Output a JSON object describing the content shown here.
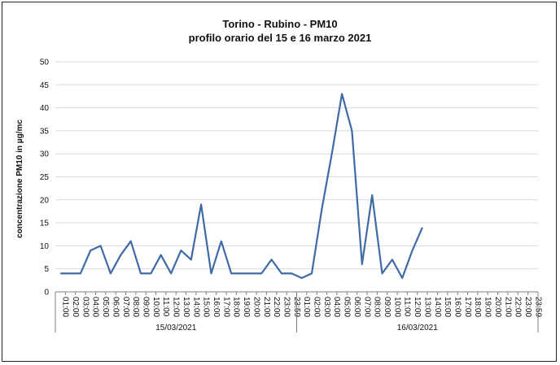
{
  "chart_data": {
    "type": "line",
    "title": "Torino - Rubino -  PM10",
    "subtitle": "profilo orario del 15 e 16 marzo 2021",
    "ylabel": "concentrazione PM10  in µg/mc",
    "ylim": [
      0,
      50
    ],
    "yticks": [
      0,
      5,
      10,
      15,
      20,
      25,
      30,
      35,
      40,
      45,
      50
    ],
    "grid": true,
    "x": [
      "01:00",
      "02:00",
      "03:00",
      "04:00",
      "05:00",
      "06:00",
      "07:00",
      "08:00",
      "09:00",
      "10:00",
      "11:00",
      "12:00",
      "13:00",
      "14:00",
      "15:00",
      "16:00",
      "17:00",
      "18:00",
      "19:00",
      "20:00",
      "21:00",
      "22:00",
      "23:00",
      "23:59",
      "01:00",
      "02:00",
      "03:00",
      "04:00",
      "05:00",
      "06:00",
      "07:00",
      "08:00",
      "09:00",
      "10:00",
      "11:00",
      "12:00",
      "13:00",
      "14:00",
      "15:00",
      "16:00",
      "17:00",
      "18:00",
      "19:00",
      "20:00",
      "21:00",
      "22:00",
      "23:00",
      "23:59"
    ],
    "groups": [
      {
        "label": "15/03/2021"
      },
      {
        "label": "16/03/2021"
      }
    ],
    "series": [
      {
        "color": "#3e6aa6",
        "values": [
          4,
          4,
          4,
          9,
          10,
          4,
          8,
          11,
          4,
          4,
          8,
          4,
          9,
          7,
          19,
          4,
          11,
          4,
          4,
          4,
          4,
          7,
          4,
          4,
          3,
          4,
          18,
          30,
          43,
          35,
          6,
          21,
          4,
          7,
          3,
          9,
          14,
          null,
          null,
          null,
          null,
          null,
          null,
          null,
          null,
          null,
          null,
          null
        ]
      }
    ]
  }
}
